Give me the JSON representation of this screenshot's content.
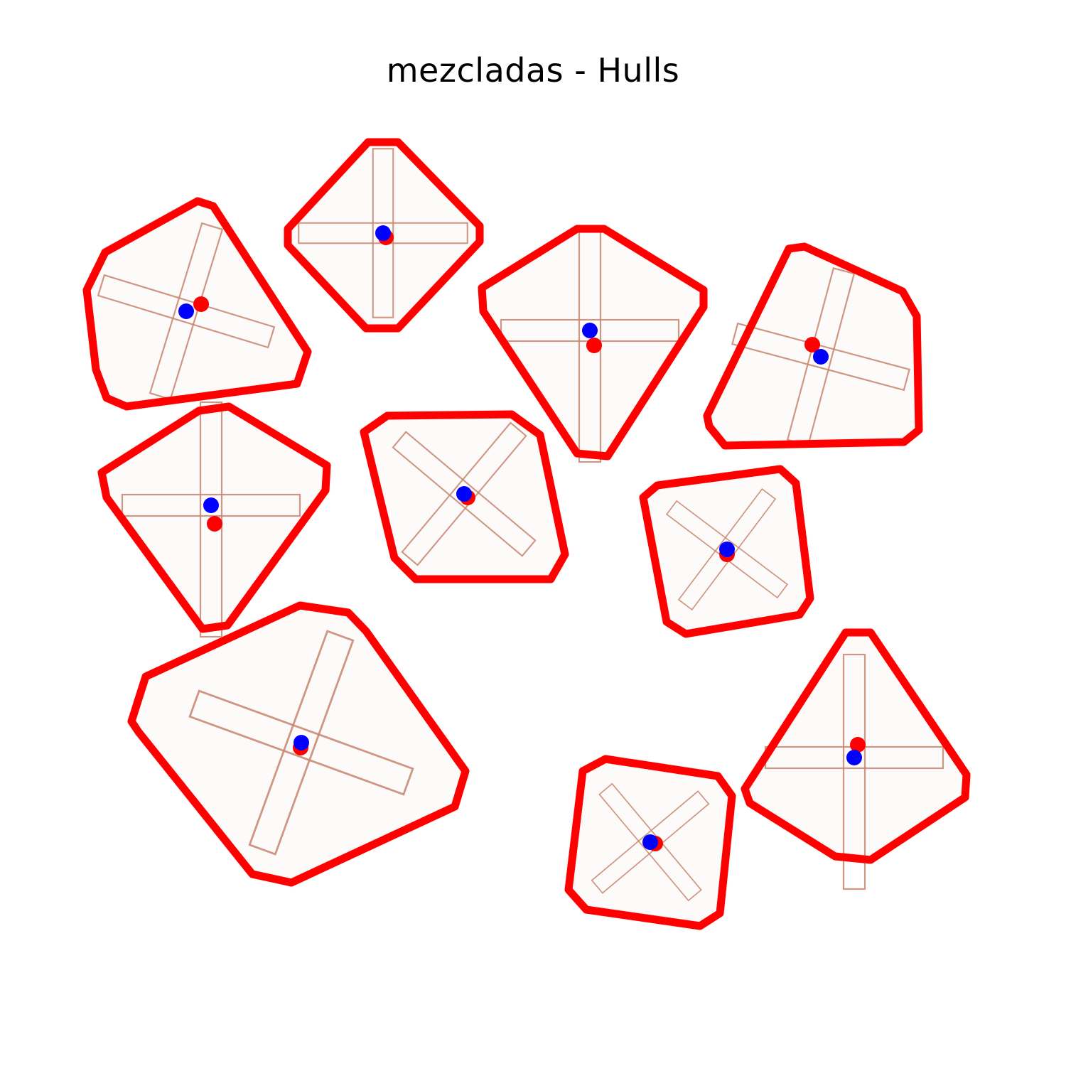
{
  "title": "mezcladas - Hulls",
  "colors": {
    "hull": "#ff0000",
    "centroid_a": "#ff0000",
    "centroid_b": "#0000ff",
    "cross_fill": "#fdfafa",
    "cross_edge": "#c8846e",
    "background": "#ffffff"
  },
  "pieces": [
    {
      "id": "piece-1",
      "kind": "x-cross"
    },
    {
      "id": "piece-2",
      "kind": "plus-cross"
    },
    {
      "id": "piece-3",
      "kind": "cross"
    },
    {
      "id": "piece-4",
      "kind": "x-cross"
    },
    {
      "id": "piece-5",
      "kind": "cross"
    },
    {
      "id": "piece-6",
      "kind": "x-cross"
    },
    {
      "id": "piece-7",
      "kind": "x-cross"
    },
    {
      "id": "piece-8",
      "kind": "x-cross"
    },
    {
      "id": "piece-9",
      "kind": "x-cross"
    },
    {
      "id": "piece-10",
      "kind": "cross"
    }
  ]
}
